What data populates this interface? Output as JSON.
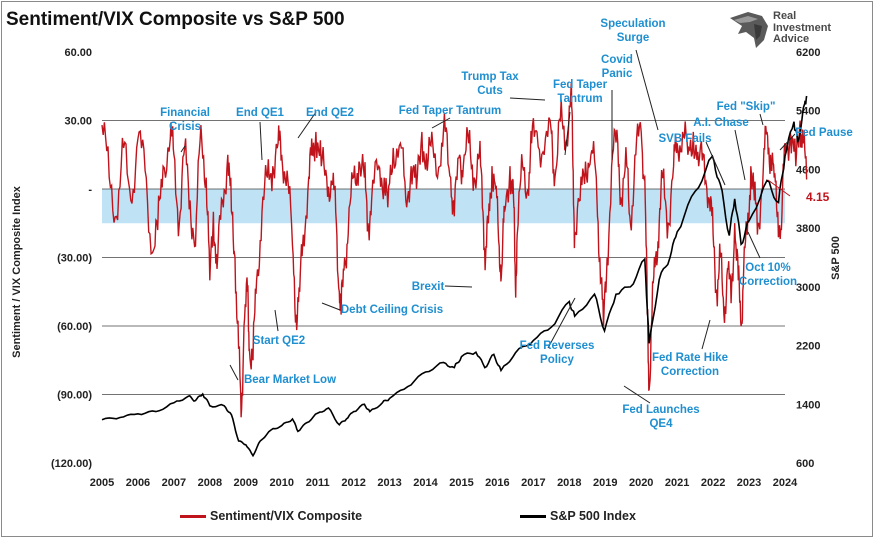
{
  "title": "Sentiment/VIX Composite vs S&P 500",
  "brand": {
    "name": "Real Investment Advice"
  },
  "chart_data": {
    "type": "line",
    "x_range": [
      2005,
      2024
    ],
    "x_ticks": [
      "2005",
      "2006",
      "2007",
      "2008",
      "2009",
      "2010",
      "2011",
      "2012",
      "2013",
      "2014",
      "2015",
      "2016",
      "2017",
      "2018",
      "2019",
      "2020",
      "2021",
      "2022",
      "2023",
      "2024"
    ],
    "left_axis": {
      "label": "Sentiment / VIX Composite Index",
      "range": [
        -120,
        60
      ],
      "ticks": [
        {
          "value": 60,
          "label": "60.00"
        },
        {
          "value": 30,
          "label": "30.00"
        },
        {
          "value": 0,
          "label": "-"
        },
        {
          "value": -30,
          "label": "(30.00)"
        },
        {
          "value": -60,
          "label": "(60.00)"
        },
        {
          "value": -90,
          "label": "(90.00)"
        },
        {
          "value": -120,
          "label": "(120.00)"
        }
      ]
    },
    "right_axis": {
      "label": "S&P 500",
      "range": [
        600,
        6200
      ],
      "ticks": [
        {
          "value": 6200,
          "label": "6200"
        },
        {
          "value": 5400,
          "label": "5400"
        },
        {
          "value": 4600,
          "label": "4600"
        },
        {
          "value": 3800,
          "label": "3800"
        },
        {
          "value": 3000,
          "label": "3000"
        },
        {
          "value": 2200,
          "label": "2200"
        },
        {
          "value": 1400,
          "label": "1400"
        },
        {
          "value": 600,
          "label": "600"
        }
      ]
    },
    "shaded_band": [
      -15,
      0
    ],
    "reference_lines": [
      30,
      -30,
      -60,
      -90
    ],
    "latest_value": "4.15",
    "colors": {
      "sentiment": "#c0141c",
      "spx": "#000000",
      "band": "#bfe3f5",
      "annotation": "#1f8fd0",
      "grid": "#444444"
    },
    "series": [
      {
        "name": "Sentiment/VIX Composite",
        "axis": "left",
        "points": [
          [
            2005.0,
            28
          ],
          [
            2005.2,
            5
          ],
          [
            2005.4,
            -12
          ],
          [
            2005.6,
            18
          ],
          [
            2005.8,
            -5
          ],
          [
            2006.0,
            22
          ],
          [
            2006.2,
            8
          ],
          [
            2006.4,
            -28
          ],
          [
            2006.55,
            -18
          ],
          [
            2006.7,
            10
          ],
          [
            2006.9,
            22
          ],
          [
            2007.0,
            15
          ],
          [
            2007.15,
            -15
          ],
          [
            2007.3,
            18
          ],
          [
            2007.45,
            -5
          ],
          [
            2007.6,
            -25
          ],
          [
            2007.75,
            28
          ],
          [
            2007.9,
            5
          ],
          [
            2008.0,
            -40
          ],
          [
            2008.1,
            -10
          ],
          [
            2008.2,
            -35
          ],
          [
            2008.35,
            -5
          ],
          [
            2008.5,
            15
          ],
          [
            2008.6,
            -10
          ],
          [
            2008.7,
            -30
          ],
          [
            2008.8,
            -70
          ],
          [
            2008.87,
            -100
          ],
          [
            2008.95,
            -60
          ],
          [
            2009.05,
            -45
          ],
          [
            2009.1,
            -70
          ],
          [
            2009.2,
            -75
          ],
          [
            2009.3,
            -40
          ],
          [
            2009.45,
            -10
          ],
          [
            2009.6,
            5
          ],
          [
            2009.75,
            10
          ],
          [
            2009.9,
            20
          ],
          [
            2010.0,
            15
          ],
          [
            2010.15,
            8
          ],
          [
            2010.3,
            -25
          ],
          [
            2010.4,
            -55
          ],
          [
            2010.5,
            -45
          ],
          [
            2010.6,
            -20
          ],
          [
            2010.75,
            5
          ],
          [
            2010.85,
            15
          ],
          [
            2010.95,
            25
          ],
          [
            2011.1,
            10
          ],
          [
            2011.25,
            5
          ],
          [
            2011.4,
            2
          ],
          [
            2011.5,
            -10
          ],
          [
            2011.6,
            -45
          ],
          [
            2011.65,
            -55
          ],
          [
            2011.75,
            -30
          ],
          [
            2011.85,
            -20
          ],
          [
            2012.0,
            5
          ],
          [
            2012.15,
            12
          ],
          [
            2012.3,
            5
          ],
          [
            2012.4,
            -15
          ],
          [
            2012.5,
            -5
          ],
          [
            2012.7,
            10
          ],
          [
            2012.85,
            5
          ],
          [
            2012.95,
            -8
          ],
          [
            2013.1,
            18
          ],
          [
            2013.3,
            20
          ],
          [
            2013.45,
            -5
          ],
          [
            2013.6,
            10
          ],
          [
            2013.75,
            0
          ],
          [
            2013.9,
            25
          ],
          [
            2014.05,
            8
          ],
          [
            2014.2,
            20
          ],
          [
            2014.4,
            10
          ],
          [
            2014.55,
            25
          ],
          [
            2014.7,
            5
          ],
          [
            2014.8,
            -12
          ],
          [
            2014.95,
            15
          ],
          [
            2015.05,
            10
          ],
          [
            2015.2,
            20
          ],
          [
            2015.35,
            5
          ],
          [
            2015.5,
            15
          ],
          [
            2015.6,
            -10
          ],
          [
            2015.67,
            -30
          ],
          [
            2015.75,
            -15
          ],
          [
            2015.85,
            10
          ],
          [
            2015.95,
            0
          ],
          [
            2016.05,
            -25
          ],
          [
            2016.12,
            -35
          ],
          [
            2016.2,
            -10
          ],
          [
            2016.35,
            10
          ],
          [
            2016.45,
            -5
          ],
          [
            2016.5,
            -42
          ],
          [
            2016.55,
            -20
          ],
          [
            2016.7,
            10
          ],
          [
            2016.85,
            0
          ],
          [
            2016.95,
            20
          ],
          [
            2017.1,
            25
          ],
          [
            2017.3,
            15
          ],
          [
            2017.5,
            25
          ],
          [
            2017.6,
            5
          ],
          [
            2017.75,
            30
          ],
          [
            2017.9,
            20
          ],
          [
            2018.05,
            45
          ],
          [
            2018.1,
            10
          ],
          [
            2018.15,
            -20
          ],
          [
            2018.3,
            -5
          ],
          [
            2018.45,
            12
          ],
          [
            2018.6,
            15
          ],
          [
            2018.75,
            5
          ],
          [
            2018.85,
            -30
          ],
          [
            2018.95,
            -60
          ],
          [
            2019.05,
            -30
          ],
          [
            2019.2,
            15
          ],
          [
            2019.35,
            20
          ],
          [
            2019.45,
            -5
          ],
          [
            2019.6,
            10
          ],
          [
            2019.7,
            -15
          ],
          [
            2019.85,
            15
          ],
          [
            2020.0,
            25
          ],
          [
            2020.1,
            5
          ],
          [
            2020.17,
            -55
          ],
          [
            2020.22,
            -88
          ],
          [
            2020.3,
            -55
          ],
          [
            2020.4,
            -30
          ],
          [
            2020.5,
            -15
          ],
          [
            2020.6,
            5
          ],
          [
            2020.75,
            -15
          ],
          [
            2020.9,
            10
          ],
          [
            2021.0,
            20
          ],
          [
            2021.15,
            25
          ],
          [
            2021.3,
            15
          ],
          [
            2021.45,
            25
          ],
          [
            2021.6,
            10
          ],
          [
            2021.75,
            15
          ],
          [
            2021.9,
            -5
          ],
          [
            2022.0,
            -20
          ],
          [
            2022.1,
            -45
          ],
          [
            2022.2,
            -30
          ],
          [
            2022.3,
            -55
          ],
          [
            2022.4,
            -35
          ],
          [
            2022.5,
            -50
          ],
          [
            2022.6,
            -15
          ],
          [
            2022.7,
            -40
          ],
          [
            2022.78,
            -60
          ],
          [
            2022.85,
            -35
          ],
          [
            2022.95,
            -20
          ],
          [
            2023.05,
            10
          ],
          [
            2023.15,
            -5
          ],
          [
            2023.25,
            -15
          ],
          [
            2023.4,
            10
          ],
          [
            2023.5,
            25
          ],
          [
            2023.6,
            15
          ],
          [
            2023.7,
            5
          ],
          [
            2023.8,
            -10
          ],
          [
            2023.9,
            -18
          ],
          [
            2024.0,
            20
          ],
          [
            2024.15,
            25
          ],
          [
            2024.3,
            10
          ],
          [
            2024.42,
            30
          ],
          [
            2024.5,
            20
          ],
          [
            2024.6,
            4.15
          ]
        ]
      },
      {
        "name": "S&P 500 Index",
        "axis": "right",
        "points": [
          [
            2005.0,
            1190
          ],
          [
            2005.5,
            1220
          ],
          [
            2006.0,
            1270
          ],
          [
            2006.5,
            1300
          ],
          [
            2007.0,
            1420
          ],
          [
            2007.4,
            1510
          ],
          [
            2007.6,
            1450
          ],
          [
            2007.8,
            1540
          ],
          [
            2008.0,
            1380
          ],
          [
            2008.4,
            1380
          ],
          [
            2008.6,
            1260
          ],
          [
            2008.8,
            900
          ],
          [
            2009.0,
            850
          ],
          [
            2009.2,
            700
          ],
          [
            2009.4,
            900
          ],
          [
            2009.7,
            1050
          ],
          [
            2010.0,
            1110
          ],
          [
            2010.3,
            1200
          ],
          [
            2010.45,
            1030
          ],
          [
            2010.7,
            1150
          ],
          [
            2011.0,
            1280
          ],
          [
            2011.3,
            1350
          ],
          [
            2011.6,
            1120
          ],
          [
            2011.8,
            1200
          ],
          [
            2012.0,
            1300
          ],
          [
            2012.3,
            1400
          ],
          [
            2012.45,
            1300
          ],
          [
            2012.8,
            1420
          ],
          [
            2013.0,
            1480
          ],
          [
            2013.5,
            1640
          ],
          [
            2014.0,
            1840
          ],
          [
            2014.5,
            1970
          ],
          [
            2014.8,
            1900
          ],
          [
            2015.0,
            2050
          ],
          [
            2015.4,
            2110
          ],
          [
            2015.65,
            1900
          ],
          [
            2015.9,
            2080
          ],
          [
            2016.1,
            1860
          ],
          [
            2016.5,
            2100
          ],
          [
            2017.0,
            2270
          ],
          [
            2017.5,
            2450
          ],
          [
            2018.0,
            2800
          ],
          [
            2018.15,
            2600
          ],
          [
            2018.7,
            2900
          ],
          [
            2018.98,
            2400
          ],
          [
            2019.3,
            2900
          ],
          [
            2019.7,
            3000
          ],
          [
            2020.1,
            3380
          ],
          [
            2020.22,
            2230
          ],
          [
            2020.5,
            3100
          ],
          [
            2020.8,
            3400
          ],
          [
            2021.0,
            3750
          ],
          [
            2021.5,
            4300
          ],
          [
            2021.98,
            4780
          ],
          [
            2022.2,
            4400
          ],
          [
            2022.45,
            3700
          ],
          [
            2022.6,
            4200
          ],
          [
            2022.78,
            3580
          ],
          [
            2023.0,
            3900
          ],
          [
            2023.5,
            4450
          ],
          [
            2023.82,
            4150
          ],
          [
            2024.0,
            4780
          ],
          [
            2024.25,
            5250
          ],
          [
            2024.35,
            4970
          ],
          [
            2024.55,
            5500
          ],
          [
            2024.6,
            5600
          ]
        ]
      }
    ],
    "annotations": [
      "Financial\nCrisis",
      "End QE1",
      "End QE2",
      "Fed Taper Tantrum",
      "Trump Tax\nCuts",
      "Fed Taper\nTantrum",
      "Speculation\nSurge",
      "Covid\nPanic",
      "SVB Fails",
      "A.I. Chase",
      "Fed \"Skip\"",
      "Fed Pause",
      "Oct 10%\nCorrection",
      "Fed Rate Hike\nCorrection",
      "Fed Launches\nQE4",
      "Fed Reverses\nPolicy",
      "Brexit",
      "Debt Ceiling Crisis",
      "Start QE2",
      "Bear Market Low"
    ]
  },
  "legend": {
    "sentiment": "Sentiment/VIX Composite",
    "spx": "S&P 500 Index"
  }
}
